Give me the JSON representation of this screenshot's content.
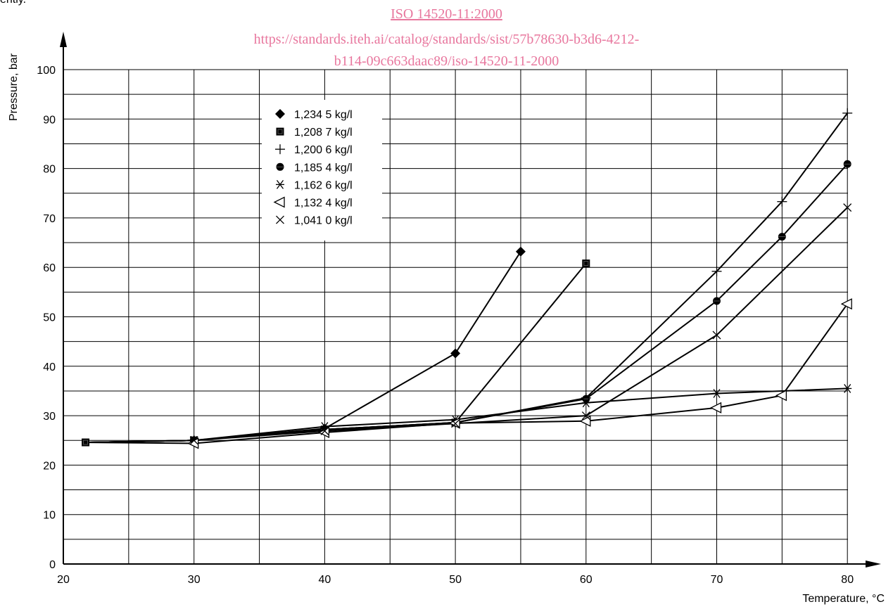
{
  "page": {
    "top_clipped_text": "ently.",
    "watermark": {
      "line1": "ISO 14520-11:2000",
      "line2": "https://standards.iteh.ai/catalog/standards/sist/57b78630-b3d6-4212-",
      "line3": "b114-09c663daac89/iso-14520-11-2000",
      "color": "#e8779e"
    }
  },
  "chart_data": {
    "type": "line",
    "title": "",
    "xlabel": "Temperature, °C",
    "ylabel": "Pressure, bar",
    "xlim": [
      20,
      82.5
    ],
    "ylim": [
      0,
      107
    ],
    "x_ticks": [
      20,
      30,
      40,
      50,
      60,
      70,
      80
    ],
    "y_ticks": [
      0,
      10,
      20,
      30,
      40,
      50,
      60,
      70,
      80,
      90,
      100
    ],
    "x_grid": [
      25,
      30,
      35,
      40,
      45,
      50,
      55,
      60,
      65,
      70,
      75,
      80
    ],
    "y_grid": [
      5,
      10,
      15,
      20,
      25,
      30,
      35,
      40,
      45,
      50,
      55,
      60,
      65,
      70,
      75,
      80,
      85,
      90,
      95,
      100
    ],
    "grid": true,
    "legend_position": "upper-left",
    "series": [
      {
        "name": "1,234 5 kg/l",
        "marker": "diamond",
        "x": [
          21.7,
          30,
          40,
          50,
          55
        ],
        "y": [
          24.6,
          25.0,
          27.4,
          42.6,
          63.2
        ]
      },
      {
        "name": "1,208 7 kg/l",
        "marker": "square",
        "x": [
          21.7,
          30,
          40,
          50,
          60
        ],
        "y": [
          24.6,
          25.0,
          27.2,
          28.6,
          60.8
        ]
      },
      {
        "name": "1,200 6 kg/l",
        "marker": "plus",
        "x": [
          21.7,
          30,
          40,
          50,
          60,
          70,
          75,
          80
        ],
        "y": [
          24.6,
          25.0,
          27.2,
          28.6,
          33.6,
          59.2,
          73.3,
          91.2
        ]
      },
      {
        "name": "1,185 4 kg/l",
        "marker": "circle",
        "x": [
          21.7,
          30,
          40,
          50,
          60,
          70,
          75,
          80
        ],
        "y": [
          24.6,
          25.0,
          27.2,
          28.6,
          33.4,
          53.2,
          66.2,
          80.9
        ]
      },
      {
        "name": "1,162 6 kg/l",
        "marker": "asterisk",
        "x": [
          21.7,
          30,
          40,
          50,
          60,
          70,
          80
        ],
        "y": [
          24.6,
          25.0,
          27.8,
          29.2,
          32.6,
          34.5,
          35.5
        ]
      },
      {
        "name": "1,132 4 kg/l",
        "marker": "triangle-left",
        "x": [
          21.7,
          30,
          40,
          50,
          60,
          70,
          75,
          80
        ],
        "y": [
          24.6,
          24.4,
          26.6,
          28.5,
          28.9,
          31.6,
          34.1,
          52.6
        ]
      },
      {
        "name": "1,041 0 kg/l",
        "marker": "x",
        "x": [
          21.7,
          30,
          40,
          50,
          60,
          70,
          80
        ],
        "y": [
          24.6,
          25.0,
          26.9,
          28.4,
          30.0,
          46.3,
          72.1
        ]
      }
    ]
  }
}
